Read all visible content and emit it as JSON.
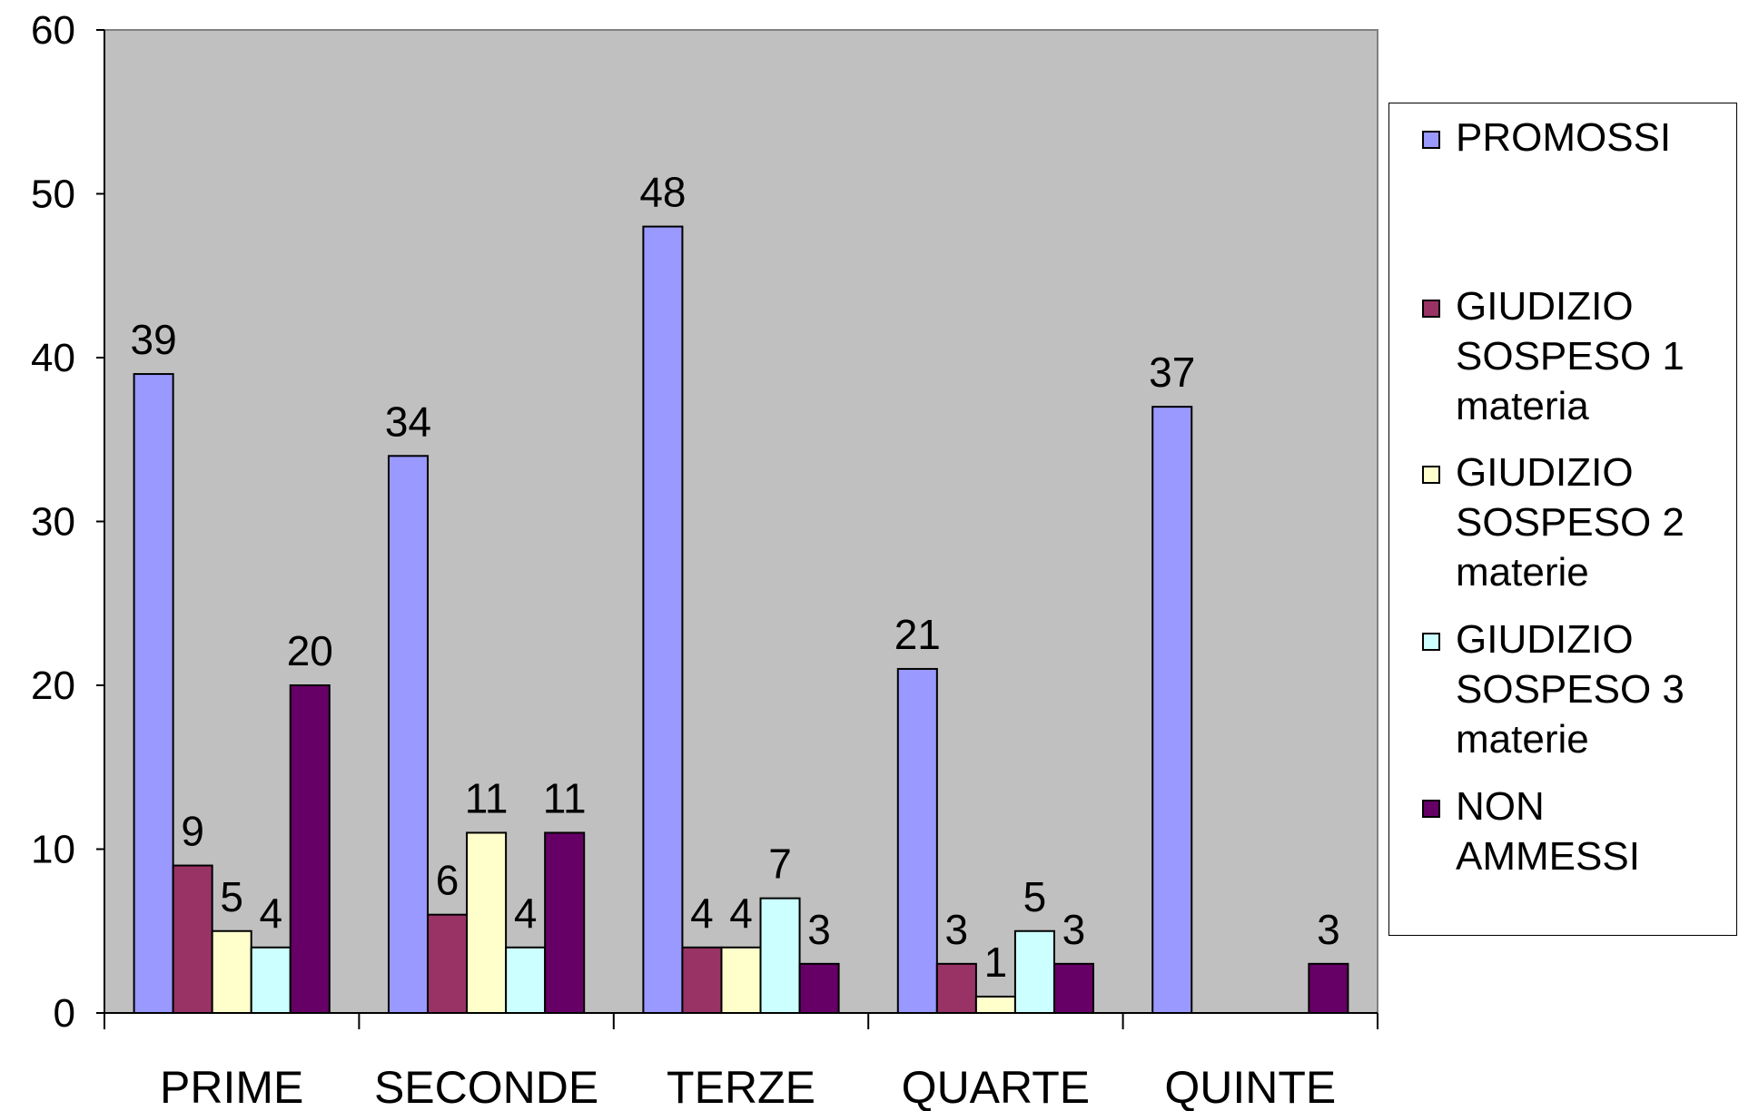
{
  "chart_data": {
    "type": "bar",
    "categories": [
      "PRIME",
      "SECONDE",
      "TERZE",
      "QUARTE",
      "QUINTE"
    ],
    "series": [
      {
        "name": "PROMOSSI",
        "values": [
          39,
          34,
          48,
          21,
          37
        ],
        "color": "#9999FF"
      },
      {
        "name": "GIUDIZIO SOSPESO 1 materia",
        "values": [
          9,
          6,
          4,
          3,
          null
        ],
        "color": "#993366"
      },
      {
        "name": "GIUDIZIO SOSPESO 2 materie",
        "values": [
          5,
          11,
          4,
          1,
          null
        ],
        "color": "#FFFFCC"
      },
      {
        "name": "GIUDIZIO SOSPESO 3 materie",
        "values": [
          4,
          4,
          7,
          5,
          null
        ],
        "color": "#CCFFFF"
      },
      {
        "name": "NON AMMESSI",
        "values": [
          20,
          11,
          3,
          3,
          3
        ],
        "color": "#660066"
      }
    ],
    "yticks": [
      0,
      10,
      20,
      30,
      40,
      50,
      60
    ],
    "ylim": [
      0,
      60
    ],
    "plot_background": "#C0C0C0",
    "grid": false,
    "legend_position": "right",
    "data_labels": true,
    "title": "",
    "xlabel": "",
    "ylabel": ""
  },
  "legend": {
    "items": [
      {
        "label": "PROMOSSI",
        "color": "#9999FF"
      },
      {
        "label": "GIUDIZIO\nSOSPESO 1\nmateria",
        "color": "#993366"
      },
      {
        "label": "GIUDIZIO\nSOSPESO 2\nmaterie",
        "color": "#FFFFCC"
      },
      {
        "label": "GIUDIZIO\nSOSPESO 3\nmaterie",
        "color": "#CCFFFF"
      },
      {
        "label": "NON AMMESSI",
        "color": "#660066"
      }
    ]
  }
}
